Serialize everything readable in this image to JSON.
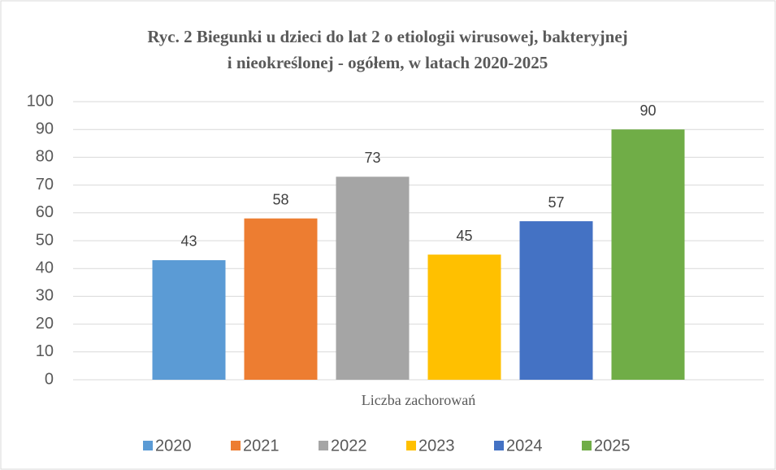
{
  "chart_data": {
    "type": "bar",
    "title": [
      "Ryc. 2 Biegunki u dzieci do lat 2 o etiologii wirusowej, bakteryjnej",
      "i nieokreślonej - ogółem, w latach 2020-2025"
    ],
    "categories": [
      "Liczba zachorowań"
    ],
    "series": [
      {
        "name": "2020",
        "color": "#5b9bd5",
        "values": [
          43
        ]
      },
      {
        "name": "2021",
        "color": "#ed7d31",
        "values": [
          58
        ]
      },
      {
        "name": "2022",
        "color": "#a5a5a5",
        "values": [
          73
        ]
      },
      {
        "name": "2023",
        "color": "#ffc000",
        "values": [
          45
        ]
      },
      {
        "name": "2024",
        "color": "#4472c4",
        "values": [
          57
        ]
      },
      {
        "name": "2025",
        "color": "#70ad47",
        "values": [
          90
        ]
      }
    ],
    "ylim": [
      0,
      100
    ],
    "yticks": [
      0,
      10,
      20,
      30,
      40,
      50,
      60,
      70,
      80,
      90,
      100
    ],
    "grid": true,
    "legend": "bottom"
  }
}
